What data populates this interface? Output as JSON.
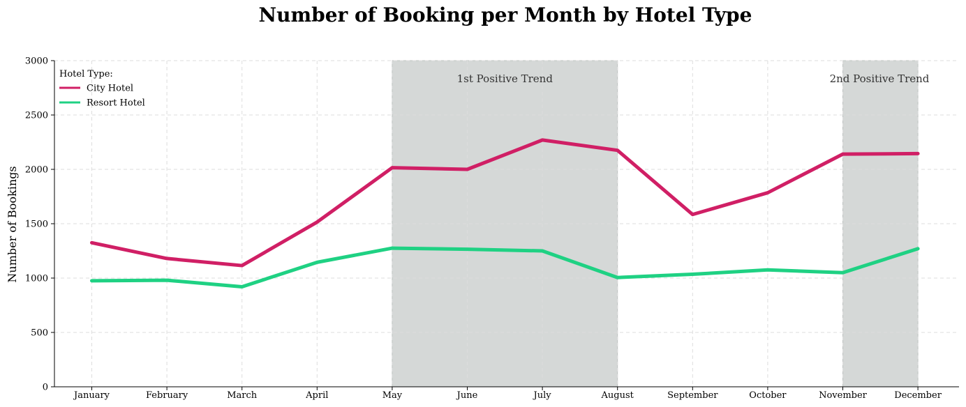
{
  "chart_data": {
    "type": "line",
    "title": "Number of Booking per Month by Hotel Type",
    "xlabel": "",
    "ylabel": "Number of Bookings",
    "categories": [
      "January",
      "February",
      "March",
      "April",
      "May",
      "June",
      "July",
      "August",
      "September",
      "October",
      "November",
      "December"
    ],
    "ylim": [
      0,
      3000
    ],
    "yticks": [
      0,
      500,
      1000,
      1500,
      2000,
      2500,
      3000
    ],
    "grid": true,
    "legend": {
      "title": "Hotel Type:",
      "placement": "top-left"
    },
    "series": [
      {
        "name": "City Hotel",
        "color": "#d01f65",
        "values": [
          1325,
          1180,
          1115,
          1515,
          2015,
          2000,
          2270,
          2175,
          1585,
          1785,
          2140,
          2145
        ]
      },
      {
        "name": "Resort Hotel",
        "color": "#1fd183",
        "values": [
          975,
          980,
          920,
          1145,
          1275,
          1265,
          1250,
          1005,
          1035,
          1075,
          1050,
          1270
        ]
      }
    ],
    "highlight_color": "#d5d8d7",
    "annotations": [
      {
        "label": "1st Positive Trend",
        "start": "May",
        "end": "August"
      },
      {
        "label": "2nd Positive Trend",
        "start": "November",
        "end": "December"
      }
    ]
  }
}
